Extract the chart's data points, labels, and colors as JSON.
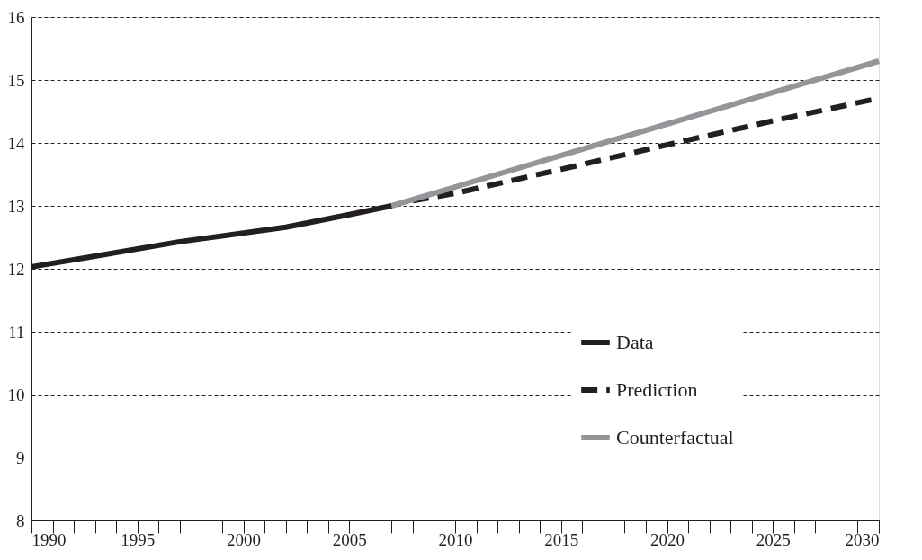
{
  "chart_data": {
    "type": "line",
    "series": [
      {
        "name": "Data",
        "color": "#231f20",
        "line_style": "solid",
        "x": [
          1990,
          1993,
          1997,
          2002,
          2005,
          2007
        ],
        "values": [
          12.03,
          12.2,
          12.43,
          12.66,
          12.86,
          13.0
        ]
      },
      {
        "name": "Prediction",
        "color": "#231f20",
        "line_style": "dashed",
        "x": [
          2008,
          2010,
          2015,
          2020,
          2025,
          2030
        ],
        "values": [
          13.08,
          13.2,
          13.58,
          13.97,
          14.35,
          14.71
        ]
      },
      {
        "name": "Counterfactual",
        "color": "#939598",
        "line_style": "solid",
        "x": [
          2007,
          2020,
          2030
        ],
        "values": [
          13.0,
          14.3,
          15.3
        ]
      }
    ],
    "xlim": [
      1990,
      2030
    ],
    "xticks": [
      1990,
      {
        "value": 1991,
        "label": null
      },
      {
        "value": 1992,
        "label": null
      },
      {
        "value": 1993,
        "label": null
      },
      {
        "value": 1994,
        "label": null
      },
      1995,
      {
        "value": 1996,
        "label": null
      },
      {
        "value": 1997,
        "label": null
      },
      {
        "value": 1998,
        "label": null
      },
      {
        "value": 1999,
        "label": null
      },
      2000,
      {
        "value": 2001,
        "label": null
      },
      {
        "value": 2002,
        "label": null
      },
      {
        "value": 2003,
        "label": null
      },
      {
        "value": 2004,
        "label": null
      },
      2005,
      {
        "value": 2006,
        "label": null
      },
      {
        "value": 2007,
        "label": null
      },
      {
        "value": 2008,
        "label": null
      },
      {
        "value": 2009,
        "label": null
      },
      2010,
      {
        "value": 2011,
        "label": null
      },
      {
        "value": 2012,
        "label": null
      },
      {
        "value": 2013,
        "label": null
      },
      {
        "value": 2014,
        "label": null
      },
      2015,
      {
        "value": 2016,
        "label": null
      },
      {
        "value": 2017,
        "label": null
      },
      {
        "value": 2018,
        "label": null
      },
      {
        "value": 2019,
        "label": null
      },
      2020,
      {
        "value": 2021,
        "label": null
      },
      {
        "value": 2022,
        "label": null
      },
      {
        "value": 2023,
        "label": null
      },
      {
        "value": 2024,
        "label": null
      },
      2025,
      {
        "value": 2026,
        "label": null
      },
      {
        "value": 2027,
        "label": null
      },
      {
        "value": 2028,
        "label": null
      },
      {
        "value": 2029,
        "label": null
      },
      2030
    ],
    "ylim": [
      8,
      16
    ],
    "yticks": [
      8,
      9,
      10,
      11,
      12,
      13,
      14,
      15,
      16
    ],
    "grid": "y",
    "legend": "bottom right",
    "marker": "none"
  }
}
